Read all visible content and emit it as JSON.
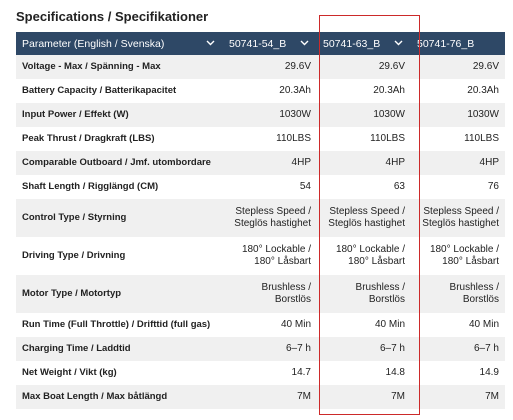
{
  "title": "Specifications / Specifikationer",
  "header": {
    "param": "Parameter (English / Svenska)",
    "models": [
      "50741-54_B",
      "50741-63_B",
      "50741-76_B"
    ]
  },
  "rows": [
    {
      "label": "Voltage - Max / Spänning - Max",
      "values": [
        "29.6V",
        "29.6V",
        "29.6V"
      ]
    },
    {
      "label": "Battery Capacity / Batterikapacitet",
      "values": [
        "20.3Ah",
        "20.3Ah",
        "20.3Ah"
      ]
    },
    {
      "label": "Input Power / Effekt (W)",
      "values": [
        "1030W",
        "1030W",
        "1030W"
      ]
    },
    {
      "label": "Peak Thrust / Dragkraft (LBS)",
      "values": [
        "110LBS",
        "110LBS",
        "110LBS"
      ]
    },
    {
      "label": "Comparable Outboard / Jmf. utombordare",
      "values": [
        "4HP",
        "4HP",
        "4HP"
      ]
    },
    {
      "label": "Shaft Length / Rigglängd (CM)",
      "values": [
        "54",
        "63",
        "76"
      ]
    },
    {
      "label": "Control Type / Styrning",
      "values": [
        [
          "Stepless Speed /",
          "Steglös hastighet"
        ],
        [
          "Stepless Speed /",
          "Steglös hastighet"
        ],
        [
          "Stepless Speed /",
          "Steglös hastighet"
        ]
      ]
    },
    {
      "label": "Driving Type / Drivning",
      "values": [
        [
          "180° Lockable /",
          "180° Låsbart"
        ],
        [
          "180° Lockable /",
          "180° Låsbart"
        ],
        [
          "180° Lockable /",
          "180° Låsbart"
        ]
      ]
    },
    {
      "label": "Motor Type / Motortyp",
      "values": [
        [
          "Brushless /",
          "Borstlös"
        ],
        [
          "Brushless /",
          "Borstlös"
        ],
        [
          "Brushless /",
          "Borstlös"
        ]
      ]
    },
    {
      "label": "Run Time (Full Throttle) / Drifttid (full gas)",
      "values": [
        "40 Min",
        "40 Min",
        "40 Min"
      ]
    },
    {
      "label": "Charging Time / Laddtid",
      "values": [
        "6–7 h",
        "6–7 h",
        "6–7 h"
      ]
    },
    {
      "label": "Net Weight / Vikt (kg)",
      "values": [
        "14.7",
        "14.8",
        "14.9"
      ]
    },
    {
      "label": "Max Boat Length / Max båtlängd",
      "values": [
        "7M",
        "7M",
        "7M"
      ]
    }
  ],
  "colors": {
    "header_bg": "#2e4866",
    "highlight_border": "#cc2a2a",
    "stripe": "#f0f0f0"
  },
  "icons": {
    "dropdown": "chevron-down-icon"
  }
}
